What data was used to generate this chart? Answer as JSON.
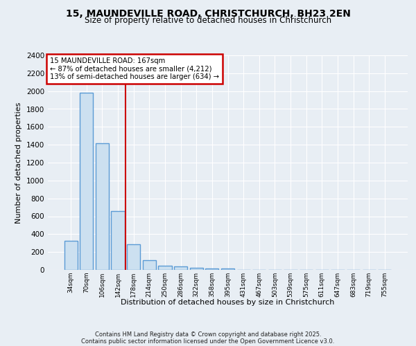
{
  "title1": "15, MAUNDEVILLE ROAD, CHRISTCHURCH, BH23 2EN",
  "title2": "Size of property relative to detached houses in Christchurch",
  "xlabel": "Distribution of detached houses by size in Christchurch",
  "ylabel": "Number of detached properties",
  "categories": [
    "34sqm",
    "70sqm",
    "106sqm",
    "142sqm",
    "178sqm",
    "214sqm",
    "250sqm",
    "286sqm",
    "322sqm",
    "358sqm",
    "395sqm",
    "431sqm",
    "467sqm",
    "503sqm",
    "539sqm",
    "575sqm",
    "611sqm",
    "647sqm",
    "683sqm",
    "719sqm",
    "755sqm"
  ],
  "values": [
    325,
    1980,
    1420,
    655,
    290,
    105,
    47,
    38,
    25,
    15,
    15,
    0,
    0,
    0,
    0,
    0,
    0,
    0,
    0,
    0,
    0
  ],
  "bar_color": "#cce0f0",
  "bar_edge_color": "#5b9bd5",
  "bar_edge_width": 1.0,
  "property_line_color": "#cc0000",
  "ylim": [
    0,
    2400
  ],
  "yticks": [
    0,
    200,
    400,
    600,
    800,
    1000,
    1200,
    1400,
    1600,
    1800,
    2000,
    2200,
    2400
  ],
  "annotation_title": "15 MAUNDEVILLE ROAD: 167sqm",
  "annotation_line1": "← 87% of detached houses are smaller (4,212)",
  "annotation_line2": "13% of semi-detached houses are larger (634) →",
  "annotation_box_color": "#cc0000",
  "footer1": "Contains HM Land Registry data © Crown copyright and database right 2025.",
  "footer2": "Contains public sector information licensed under the Open Government Licence v3.0.",
  "background_color": "#e8eef4",
  "grid_color": "#ffffff"
}
